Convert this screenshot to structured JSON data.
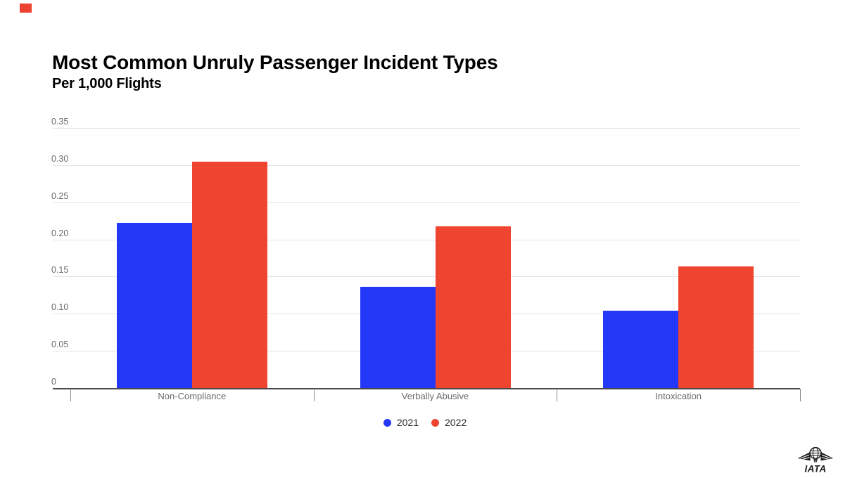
{
  "chart_data": {
    "type": "bar",
    "title": "Most Common Unruly Passenger Incident Types",
    "subtitle": "Per 1,000 Flights",
    "categories": [
      "Non-Compliance",
      "Verbally Abusive",
      "Intoxication"
    ],
    "series": [
      {
        "name": "2021",
        "color": "#2438f7",
        "values": [
          0.222,
          0.136,
          0.104
        ]
      },
      {
        "name": "2022",
        "color": "#ef442f",
        "values": [
          0.305,
          0.218,
          0.164
        ]
      }
    ],
    "ylim": [
      0,
      0.35
    ],
    "yticks": [
      {
        "value": 0,
        "label": "0"
      },
      {
        "value": 0.05,
        "label": "0.05"
      },
      {
        "value": 0.1,
        "label": "0.10"
      },
      {
        "value": 0.15,
        "label": "0.15"
      },
      {
        "value": 0.2,
        "label": "0.20"
      },
      {
        "value": 0.25,
        "label": "0.25"
      },
      {
        "value": 0.3,
        "label": "0.30"
      },
      {
        "value": 0.35,
        "label": "0.35"
      }
    ],
    "grid": true,
    "legend_position": "bottom-center",
    "legend": [
      "2021",
      "2022"
    ]
  },
  "branding": {
    "logo_text": "IATA"
  },
  "colors": {
    "series_2021": "#2438f7",
    "series_2022": "#ef442f",
    "gridline": "#e3e3e3",
    "axis_line": "#4a4a4a",
    "tick": "#8c8c8c",
    "y_label": "#6b6b6b",
    "category_label": "#6b6b6b",
    "legend_text": "#2b2b2b",
    "corner_marker": "#ee4330",
    "logo": "#1c1c1c"
  }
}
